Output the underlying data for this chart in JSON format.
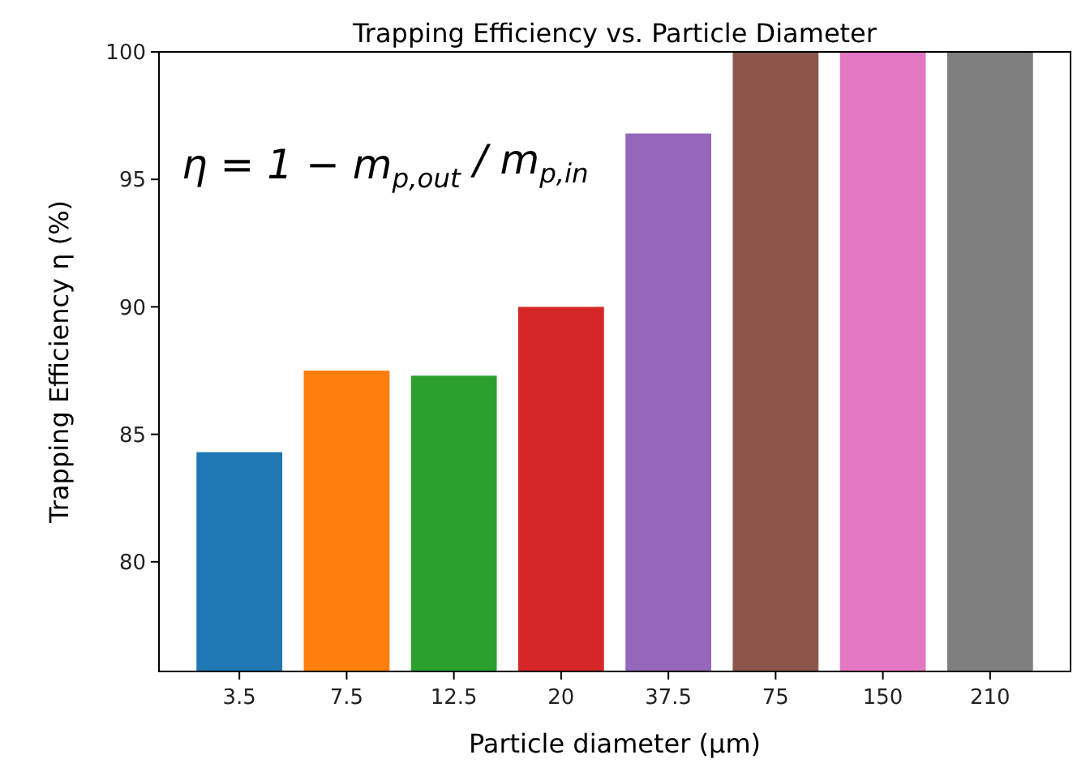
{
  "chart_data": {
    "type": "bar",
    "title": "Trapping Efficiency vs. Particle Diameter",
    "xlabel": "Particle diameter (μm)",
    "ylabel": "Trapping Efficiency η (%)",
    "categories": [
      "3.5",
      "7.5",
      "12.5",
      "20",
      "37.5",
      "75",
      "150",
      "210"
    ],
    "values": [
      84.3,
      87.5,
      87.3,
      90,
      96.8,
      100,
      100,
      100
    ],
    "colors": [
      "#1f77b4",
      "#ff7f0e",
      "#2ca02c",
      "#d62728",
      "#9467bd",
      "#8c564b",
      "#e377c2",
      "#7f7f7f"
    ],
    "ylim": [
      75.7,
      100
    ],
    "yticks": [
      80,
      85,
      90,
      95,
      100
    ],
    "grid": false,
    "annotations": [
      "η = 1 − m$_{p,out}$ / m$_{p,in}$"
    ]
  }
}
